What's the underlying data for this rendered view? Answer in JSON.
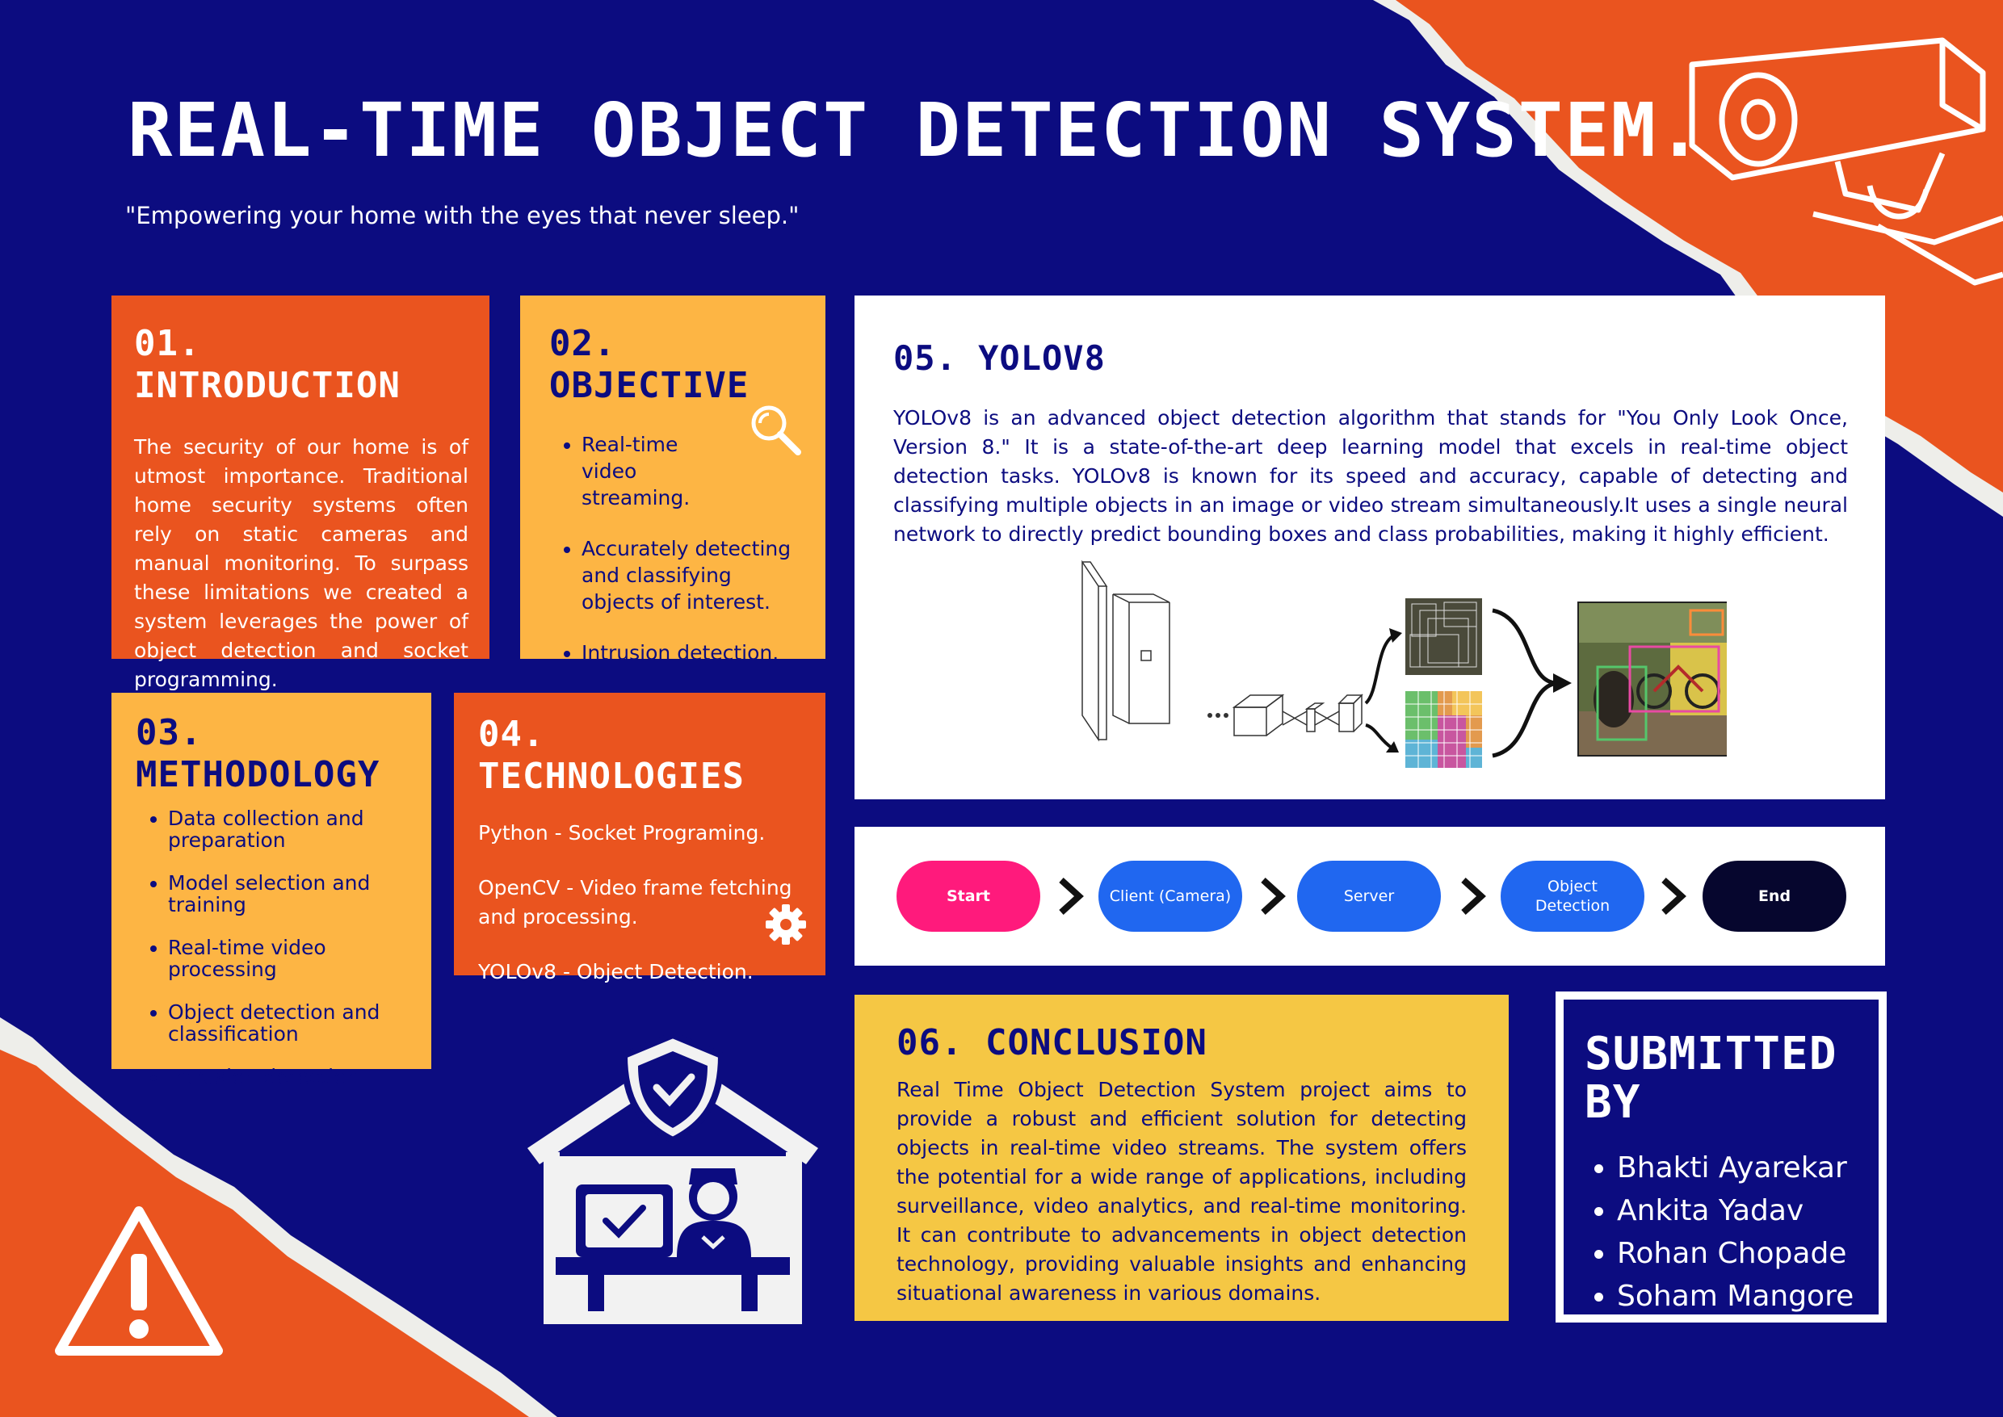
{
  "title": "REAL-TIME OBJECT DETECTION SYSTEM.",
  "tagline": "\"Empowering your home with the eyes that never sleep.\"",
  "colors": {
    "background": "#0c0c80",
    "orange": "#ea541f",
    "amber": "#fdb544",
    "yellow": "#f5c744",
    "start_pill": "#ff1a7c",
    "step_pill": "#2067f0",
    "end_pill": "#06062e"
  },
  "intro": {
    "heading": "01. INTRODUCTION",
    "text": "The security of our home is of utmost importance. Traditional home security systems often rely on static cameras and manual monitoring. To surpass these limitations we created a system leverages the power of object detection and socket programming."
  },
  "objective": {
    "heading": "02. OBJECTIVE",
    "items": [
      "Real-time video streaming.",
      "Accurately detecting and classifying objects of interest.",
      "Intrusion detection."
    ]
  },
  "methodology": {
    "heading": "03. METHODOLOGY",
    "items": [
      "Data collection and preparation",
      "Model selection and training",
      "Real-time video processing",
      "Object detection and classification",
      "Intrusion detection"
    ]
  },
  "technologies": {
    "heading": "04. TECHNOLOGIES",
    "items": [
      "Python - Socket Programing.",
      "OpenCV - Video frame fetching and processing.",
      "YOLOv8 - Object Detection."
    ]
  },
  "yolo": {
    "heading": "05. YOLOV8",
    "text": "YOLOv8 is an advanced object detection algorithm that stands for \"You Only Look Once, Version 8.\" It is a state-of-the-art deep learning model that excels in real-time object detection tasks. YOLOv8 is known for its speed and accuracy, capable of detecting and classifying multiple objects in an image or video stream simultaneously.It uses a single neural network to directly predict bounding boxes and class probabilities, making it highly efficient."
  },
  "flow": {
    "steps": [
      "Start",
      "Client (Camera)",
      "Server",
      "Object Detection",
      "End"
    ]
  },
  "conclusion": {
    "heading": "06. CONCLUSION",
    "text": "Real Time Object Detection System project aims to provide a robust and efficient solution for detecting objects in real-time video streams. The system offers the potential for a wide range of applications, including surveillance, video analytics, and real-time monitoring. It can contribute to advancements in object detection technology, providing valuable insights and enhancing situational awareness in various domains."
  },
  "submitted": {
    "heading": "SUBMITTED BY",
    "names": [
      "Bhakti Ayarekar",
      "Ankita Yadav",
      "Rohan Chopade",
      "Soham Mangore"
    ]
  }
}
